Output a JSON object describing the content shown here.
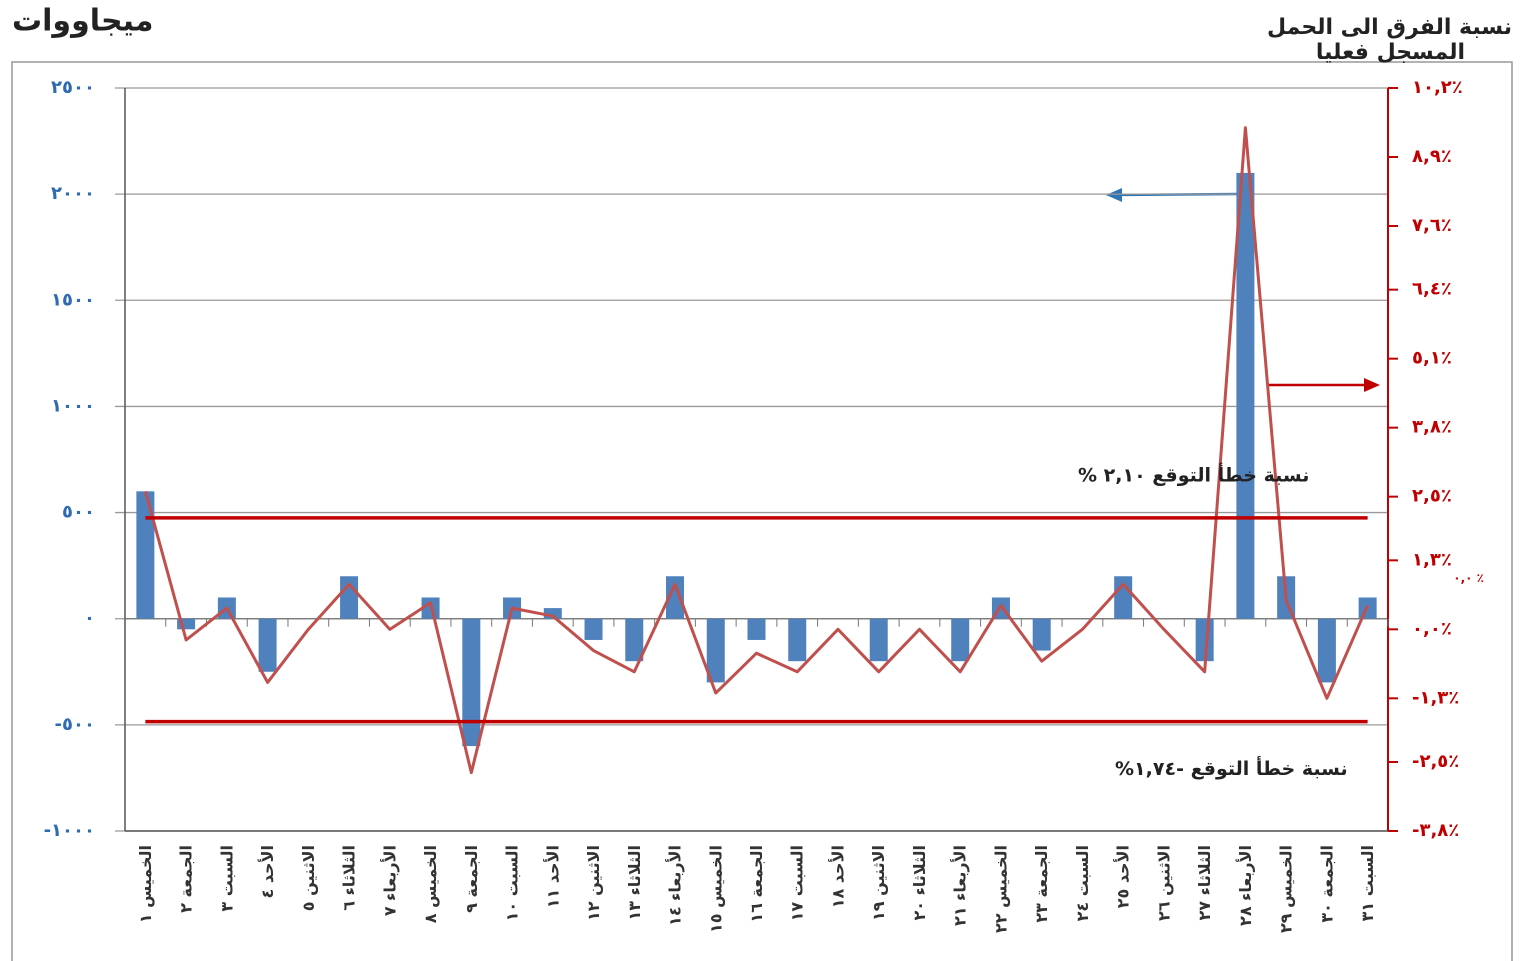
{
  "chart_data": {
    "type": "combo",
    "y_label": "ميجاووات",
    "y2_label": [
      "نسبة الفرق الى الحمل",
      "المسجل فعليا"
    ],
    "categories": [
      "الخميس ١",
      "الجمعة ٢",
      "السبت ٣",
      "الأحد ٤",
      "الاثنين ٥",
      "الثلاثاء ٦",
      "الأربعاء ٧",
      "الخميس ٨",
      "الجمعة ٩",
      "السبت ١٠",
      "الأحد ١١",
      "الاثنين ١٢",
      "الثلاثاء ١٣",
      "الأربعاء ١٤",
      "الخميس ١٥",
      "الجمعة ١٦",
      "السبت ١٧",
      "الأحد ١٨",
      "الاثنين ١٩",
      "الثلاثاء ٢٠",
      "الأربعاء ٢١",
      "الخميس ٢٢",
      "الجمعة ٢٣",
      "السبت ٢٤",
      "الأحد ٢٥",
      "الاثنين ٢٦",
      "الثلاثاء ٢٧",
      "الأربعاء ٢٨",
      "الخميس ٢٩",
      "الجمعة ٣٠",
      "السبت ٣١"
    ],
    "series": [
      {
        "type": "bar",
        "axis": "y",
        "color": "#4f81bd",
        "values": [
          600,
          -50,
          100,
          -250,
          0,
          200,
          0,
          100,
          -600,
          100,
          50,
          -100,
          -200,
          200,
          -300,
          -100,
          -200,
          0,
          -200,
          0,
          -200,
          100,
          -150,
          0,
          200,
          0,
          -200,
          2100,
          200,
          -300,
          100
        ]
      },
      {
        "type": "line",
        "axis": "y2",
        "color": "#c0504d",
        "values": [
          2.6,
          -0.2,
          0.4,
          -1.0,
          0,
          0.85,
          0,
          0.5,
          -2.7,
          0.4,
          0.25,
          -0.4,
          -0.8,
          0.85,
          -1.2,
          -0.45,
          -0.8,
          0,
          -0.8,
          0,
          -0.8,
          0.45,
          -0.6,
          0,
          0.85,
          0,
          -0.8,
          9.45,
          0.55,
          -1.3,
          0.45
        ]
      }
    ],
    "ylim": [
      -1000,
      2500
    ],
    "yticks": [
      {
        "value": -1000,
        "label": "-١٠٠٠"
      },
      {
        "value": -500,
        "label": "-٥٠٠"
      },
      {
        "value": 0,
        "label": "٠"
      },
      {
        "value": 500,
        "label": "٥٠٠"
      },
      {
        "value": 1000,
        "label": "١٠٠٠"
      },
      {
        "value": 1500,
        "label": "١٥٠٠"
      },
      {
        "value": 2000,
        "label": "٢٠٠٠"
      },
      {
        "value": 2500,
        "label": "٢٥٠٠"
      }
    ],
    "y2lim": [
      -3.8,
      10.2
    ],
    "y2ticks": [
      {
        "value": -3.8,
        "label": "-٣,٨٪"
      },
      {
        "value": -2.5,
        "label": "-٢,٥٪"
      },
      {
        "value": -1.3,
        "label": "-١,٣٪"
      },
      {
        "value": 0,
        "label": "٠,٠٪"
      },
      {
        "value": 1.3,
        "label": "١,٣٪"
      },
      {
        "value": 2.5,
        "label": "٢,٥٪"
      },
      {
        "value": 3.8,
        "label": "٣,٨٪"
      },
      {
        "value": 5.1,
        "label": "٥,١٪"
      },
      {
        "value": 6.4,
        "label": "٦,٤٪"
      },
      {
        "value": 7.6,
        "label": "٧,٦٪"
      },
      {
        "value": 8.9,
        "label": "٨,٩٪"
      },
      {
        "value": 10.2,
        "label": "١٠,٢٪"
      }
    ],
    "grid": true,
    "reference_lines": [
      {
        "value": 2.1,
        "label": "نسبة خطأ التوقع ٢,١٠ %",
        "color": "#c00000"
      },
      {
        "value": -1.74,
        "label": "نسبة خطأ التوقع    -١,٧٤%",
        "color": "#c00000"
      }
    ],
    "annotations": [
      "٠,٠ ٪"
    ]
  }
}
